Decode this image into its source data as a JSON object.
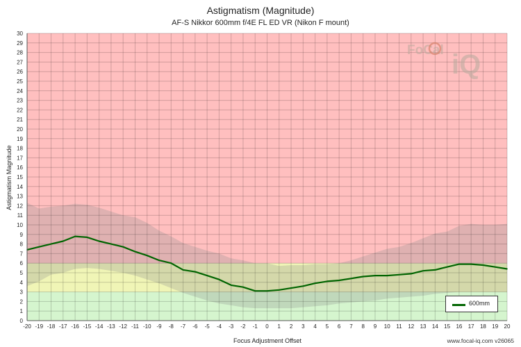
{
  "title": "Astigmatism (Magnitude)",
  "subtitle": "AF-S Nikkor 600mm f/4E FL ED VR (Nikon F mount)",
  "watermark": "www.focal-iq.com  v26065",
  "logo": {
    "focal": "FoCal",
    "iq": "iQ"
  },
  "colors": {
    "bad_zone": "#ffbfbf",
    "ok_zone": "#f0f5b6",
    "good_zone": "#d5f5ce",
    "range_band": "#8b8b8b",
    "series": "#006400"
  },
  "chart_data": {
    "type": "line",
    "title": "Astigmatism (Magnitude)",
    "subtitle": "AF-S Nikkor 600mm f/4E FL ED VR (Nikon F mount)",
    "xlabel": "Focus Adjustment Offset",
    "ylabel": "Astigmatism Magnitude",
    "xlim": [
      -20,
      20
    ],
    "ylim": [
      0,
      30
    ],
    "x_ticks": [
      -20,
      -19,
      -18,
      -17,
      -16,
      -15,
      -14,
      -13,
      -12,
      -11,
      -10,
      -9,
      -8,
      -7,
      -6,
      -5,
      -4,
      -3,
      -2,
      -1,
      0,
      1,
      2,
      3,
      4,
      5,
      6,
      7,
      8,
      9,
      10,
      11,
      12,
      13,
      14,
      15,
      16,
      17,
      18,
      19,
      20
    ],
    "y_ticks": [
      0,
      1,
      2,
      3,
      4,
      5,
      6,
      7,
      8,
      9,
      10,
      11,
      12,
      13,
      14,
      15,
      16,
      17,
      18,
      19,
      20,
      21,
      22,
      23,
      24,
      25,
      26,
      27,
      28,
      29,
      30
    ],
    "grid": true,
    "legend_position": "bottom-right",
    "zones": [
      {
        "from": 0,
        "to": 3,
        "color": "#d5f5ce"
      },
      {
        "from": 3,
        "to": 6,
        "color": "#f0f5b6"
      },
      {
        "from": 6,
        "to": 30,
        "color": "#ffbfbf"
      }
    ],
    "range_band": {
      "x": [
        -20,
        -19,
        -18,
        -17,
        -16,
        -15,
        -14,
        -13,
        -12,
        -11,
        -10,
        -9,
        -8,
        -7,
        -6,
        -5,
        -4,
        -3,
        -2,
        -1,
        0,
        1,
        2,
        3,
        4,
        5,
        6,
        7,
        8,
        9,
        10,
        11,
        12,
        13,
        14,
        15,
        16,
        17,
        18,
        19,
        20
      ],
      "upper": [
        12.3,
        11.7,
        11.9,
        12.0,
        12.2,
        12.1,
        11.8,
        11.4,
        11.0,
        10.8,
        10.2,
        9.4,
        8.8,
        8.1,
        7.7,
        7.3,
        7.0,
        6.5,
        6.3,
        6.0,
        6.0,
        5.7,
        5.8,
        5.8,
        5.9,
        5.9,
        6.0,
        6.3,
        6.7,
        7.1,
        7.5,
        7.7,
        8.1,
        8.6,
        9.1,
        9.3,
        9.9,
        10.1,
        10.0,
        10.0,
        10.1
      ],
      "lower": [
        3.6,
        4.1,
        4.8,
        5.0,
        5.4,
        5.5,
        5.4,
        5.2,
        5.0,
        4.7,
        4.3,
        3.9,
        3.4,
        2.9,
        2.5,
        2.1,
        1.8,
        1.6,
        1.4,
        1.3,
        1.3,
        1.3,
        1.3,
        1.4,
        1.5,
        1.6,
        1.8,
        1.9,
        2.0,
        2.1,
        2.3,
        2.4,
        2.5,
        2.6,
        2.8,
        2.9,
        3.0,
        3.0,
        3.0,
        3.0,
        3.0
      ]
    },
    "series": [
      {
        "name": "600mm",
        "color": "#006400",
        "x": [
          -20,
          -19,
          -18,
          -17,
          -16,
          -15,
          -14,
          -13,
          -12,
          -11,
          -10,
          -9,
          -8,
          -7,
          -6,
          -5,
          -4,
          -3,
          -2,
          -1,
          0,
          1,
          2,
          3,
          4,
          5,
          6,
          7,
          8,
          9,
          10,
          11,
          12,
          13,
          14,
          15,
          16,
          17,
          18,
          19,
          20
        ],
        "values": [
          7.4,
          7.7,
          8.0,
          8.3,
          8.8,
          8.7,
          8.3,
          8.0,
          7.7,
          7.2,
          6.8,
          6.3,
          6.0,
          5.3,
          5.1,
          4.7,
          4.3,
          3.7,
          3.5,
          3.1,
          3.1,
          3.2,
          3.4,
          3.6,
          3.9,
          4.1,
          4.2,
          4.4,
          4.6,
          4.7,
          4.7,
          4.8,
          4.9,
          5.2,
          5.3,
          5.6,
          5.9,
          5.9,
          5.8,
          5.6,
          5.4
        ]
      }
    ]
  }
}
